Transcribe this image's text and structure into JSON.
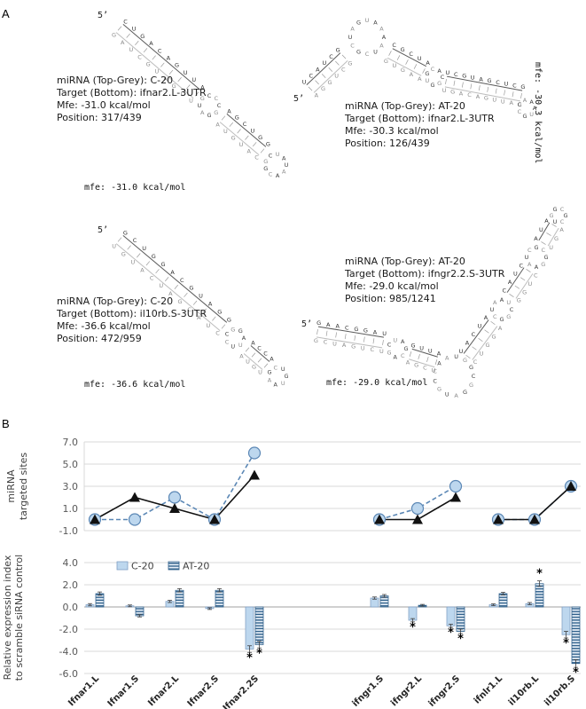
{
  "panel_a": {
    "label": "A",
    "structures": [
      {
        "five_prime": "5’",
        "lines": [
          "miRNA (Top-Grey): C-20",
          "Target (Bottom): ifnar2.L-3UTR",
          "Mfe: -31.0 kcal/mol",
          "Position: 317/439"
        ],
        "mfe_label": "mfe: -31.0 kcal/mol"
      },
      {
        "five_prime": "5’",
        "lines": [
          "miRNA (Top-Grey): AT-20",
          "Target (Bottom): ifnar2.L-3UTR",
          "Mfe: -30.3 kcal/mol",
          "Position: 126/439"
        ],
        "mfe_label": "mfe: -30.3 kcal/mol"
      },
      {
        "five_prime": "5’",
        "lines": [
          "miRNA (Top-Grey): C-20",
          "Target (Bottom): il10rb.S-3UTR",
          "Mfe: -36.6 kcal/mol",
          "Position: 472/959"
        ],
        "mfe_label": "mfe: -36.6 kcal/mol"
      },
      {
        "five_prime": "5’",
        "lines": [
          "miRNA (Top-Grey): AT-20",
          "Target (Bottom): ifngr2.2.S-3UTR",
          "Mfe: -29.0 kcal/mol",
          "Position: 985/1241"
        ],
        "mfe_label": "mfe: -29.0 kcal/mol"
      }
    ]
  },
  "panel_b": {
    "label": "B"
  },
  "chart_data": [
    {
      "type": "line",
      "title": "",
      "xlabel": "",
      "ylabel": "miRNA targeted sites",
      "ylabel_lines": [
        "miRNA",
        "targeted sites"
      ],
      "ylim": [
        -1,
        7
      ],
      "yticks": [
        7,
        5,
        3,
        1,
        -1
      ],
      "grid": true,
      "legend_position": "none",
      "categories": [
        "Ifnar1.L",
        "Ifnar1.S",
        "Ifnar2.L",
        "Ifnar2.S",
        "Ifnar2.2S",
        "ifngr1.S",
        "ifngr2.L",
        "ifngr2.S",
        "ifnlr1.L",
        "il10rb.L",
        "il10rb.S"
      ],
      "group_breaks": [
        5,
        8
      ],
      "series": [
        {
          "name": "C-20",
          "marker": "circle",
          "line_style": "dashed",
          "color": "#5b87b5",
          "fill": "#bdd7ee",
          "values": [
            0,
            0,
            2,
            0,
            6,
            0,
            1,
            3,
            0,
            0,
            3
          ]
        },
        {
          "name": "AT-20",
          "marker": "triangle",
          "line_style": "solid",
          "color": "#111111",
          "fill": "#111111",
          "values": [
            0,
            2,
            1,
            0,
            4,
            0,
            0,
            2,
            0,
            0,
            3
          ]
        }
      ]
    },
    {
      "type": "bar",
      "title": "",
      "xlabel": "",
      "ylabel": "Relative expression index to scramble siRNA control",
      "ylabel_lines": [
        "Relative expression index",
        "to scramble siRNA control"
      ],
      "ylim": [
        -6,
        4
      ],
      "yticks": [
        4,
        2,
        0,
        -2,
        -4,
        -6
      ],
      "grid": true,
      "legend_position": "top",
      "sig_marker": "*",
      "categories": [
        "Ifnar1.L",
        "Ifnar1.S",
        "Ifnar2.L",
        "Ifnar2.S",
        "Ifnar2.2S",
        "ifngr1.S",
        "ifngr2.L",
        "ifngr2.S",
        "ifnlr1.L",
        "il10rb.L",
        "il10rb.S"
      ],
      "series": [
        {
          "name": "C-20",
          "pattern": "solid",
          "fill": "#bdd7ee",
          "edge": "#7f9fc4",
          "values": [
            0.2,
            0.1,
            0.5,
            -0.15,
            -3.8,
            0.8,
            -1.2,
            -1.7,
            0.2,
            0.3,
            -2.5
          ],
          "errors": [
            0.1,
            0.08,
            0.1,
            0.08,
            0.3,
            0.1,
            0.15,
            0.15,
            0.08,
            0.1,
            0.3
          ],
          "significant": [
            false,
            false,
            false,
            false,
            true,
            false,
            true,
            true,
            false,
            false,
            true
          ]
        },
        {
          "name": "AT-20",
          "pattern": "horizontal-stripes",
          "fill": "#e8f0f8",
          "stripe_color": "#2e5f8a",
          "edge": "#2e5f8a",
          "values": [
            1.2,
            -0.8,
            1.5,
            1.5,
            -3.4,
            1.0,
            0.15,
            -2.2,
            1.2,
            2.1,
            -5.1
          ],
          "errors": [
            0.15,
            0.1,
            0.15,
            0.15,
            0.3,
            0.12,
            0.08,
            0.2,
            0.12,
            0.25,
            0.35
          ],
          "significant": [
            false,
            false,
            false,
            false,
            true,
            false,
            false,
            true,
            false,
            true,
            true
          ]
        }
      ]
    }
  ]
}
